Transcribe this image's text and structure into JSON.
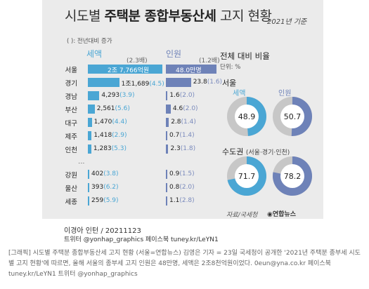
{
  "header": {
    "title_pre": "시도별 ",
    "title_bold": "주택분 종합부동산세",
    "title_post": " 고지 현황",
    "date": "2021년 기준",
    "note": "(  ): 전년대비 증가"
  },
  "chart_data": [
    {
      "type": "bar",
      "title": "",
      "categories": [
        "서울",
        "경기",
        "경남",
        "부산",
        "대구",
        "제주",
        "인천",
        "강원",
        "울산",
        "세종"
      ],
      "series": [
        {
          "name": "세액",
          "multiplier_label": "(2.3배)",
          "labels": [
            "2조 7,766억원",
            "1조1,689",
            "4,293",
            "2,561",
            "1,470",
            "1,418",
            "1,283",
            "402",
            "393",
            "259"
          ],
          "values": [
            27766,
            11689,
            4293,
            2561,
            1470,
            1418,
            1283,
            402,
            393,
            259
          ],
          "growth": [
            "",
            "(4.5)",
            "(3.9)",
            "(5.6)",
            "(4.4)",
            "(2.9)",
            "(5.3)",
            "(3.8)",
            "(6.2)",
            "(5.9)"
          ]
        },
        {
          "name": "인원",
          "multiplier_label": "(1.2배)",
          "labels": [
            "48.0만명",
            "23.8",
            "1.6",
            "4.6",
            "2.8",
            "0.7",
            "2.3",
            "0.9",
            "0.8",
            "1.1"
          ],
          "values": [
            48.0,
            23.8,
            1.6,
            4.6,
            2.8,
            0.7,
            2.3,
            0.9,
            0.8,
            1.1
          ],
          "growth": [
            "",
            "(1.6)",
            "(2.0)",
            "(2.0)",
            "(1.4)",
            "(1.4)",
            "(1.8)",
            "(1.5)",
            "(2.0)",
            "(2.8)"
          ]
        }
      ],
      "ellipsis": "⋮"
    },
    {
      "type": "pie",
      "title": "전체 대비 비율",
      "unit": "단위: %",
      "groups": [
        {
          "name": "서울",
          "pies": [
            {
              "label": "세액",
              "value": 48.9,
              "color": "#4aa6d4"
            },
            {
              "label": "인원",
              "value": 50.7,
              "color": "#6e82b8"
            }
          ]
        },
        {
          "name": "수도권",
          "subtitle": "(서울·경기·인천)",
          "pies": [
            {
              "label": "",
              "value": 71.7,
              "color": "#4aa6d4"
            },
            {
              "label": "",
              "value": 78.2,
              "color": "#6e82b8"
            }
          ]
        }
      ]
    }
  ],
  "footer": {
    "source": "자료/국세청",
    "logo": "◉연합뉴스",
    "author": "이경아 인턴 / 20211123",
    "sns": "트위터 @yonhap_graphics  페이스북 tuney.kr/LeYN1",
    "caption": "[그래픽] 시도별 주택분 종합부동산세 고지 현황 (서울=연합뉴스) 김영은 기자 = 23일 국세청이 공개한 '2021년 주택분 종부세 시도별 고지 현황'에 따르면, 올해 서울의 종부세 고지 인원은 48만명, 세액은 2조8천억원이었다. 0eun@yna.co.kr 페이스북 tuney.kr/LeYN1 트위터 @yonhap_graphics"
  },
  "colors": {
    "tax": "#4aa6d4",
    "people": "#6e82b8",
    "pie_rest": "#c7c7c7"
  }
}
